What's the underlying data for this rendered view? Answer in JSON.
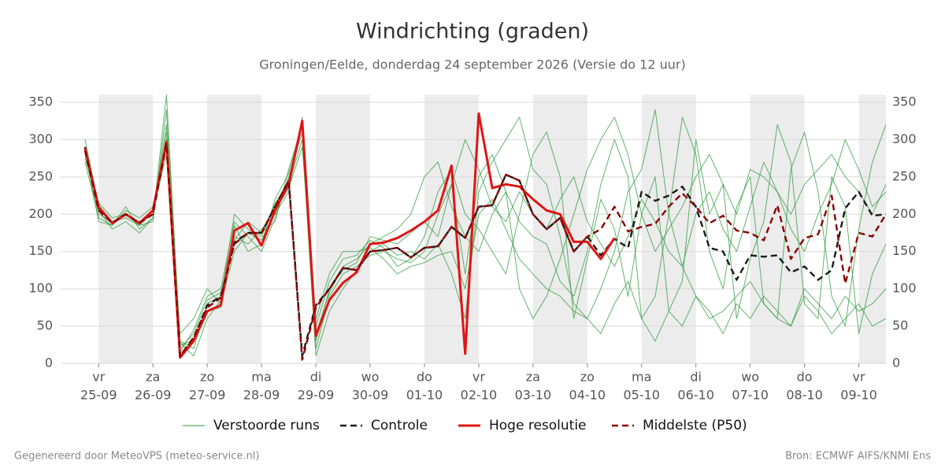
{
  "chart_data": {
    "type": "line",
    "title": "Windrichting (graden)",
    "subtitle": "Groningen/Eelde, donderdag 24 september 2026 (Versie do 12 uur)",
    "footer_left": "Gegenereerd door MeteoVPS (meteo-service.nl)",
    "footer_right": "Bron: ECMWF AIFS/KNMI Ens",
    "x": [
      -0.25,
      0,
      0.25,
      0.5,
      0.75,
      1,
      1.25,
      1.5,
      1.75,
      2,
      2.25,
      2.5,
      2.75,
      3,
      3.25,
      3.5,
      3.75,
      4,
      4.25,
      4.5,
      4.75,
      5,
      5.25,
      5.5,
      5.75,
      6,
      6.25,
      6.5,
      6.75,
      7,
      7.25,
      7.5,
      7.75,
      8,
      8.25,
      8.5,
      8.75,
      9,
      9.25,
      9.5,
      9.75,
      10,
      10.25,
      10.5,
      10.75,
      11,
      11.25,
      11.5,
      11.75,
      12,
      12.25,
      12.5,
      12.75,
      13,
      13.25,
      13.5,
      13.75,
      14,
      14.25,
      14.5
    ],
    "xlim": [
      -0.7,
      14.5
    ],
    "xticks": [
      {
        "value": 0,
        "label": "vr",
        "date": "25-09"
      },
      {
        "value": 1,
        "label": "za",
        "date": "26-09"
      },
      {
        "value": 2,
        "label": "zo",
        "date": "27-09"
      },
      {
        "value": 3,
        "label": "ma",
        "date": "28-09"
      },
      {
        "value": 4,
        "label": "di",
        "date": "29-09"
      },
      {
        "value": 5,
        "label": "wo",
        "date": "30-09"
      },
      {
        "value": 6,
        "label": "do",
        "date": "01-10"
      },
      {
        "value": 7,
        "label": "vr",
        "date": "02-10"
      },
      {
        "value": 8,
        "label": "za",
        "date": "03-10"
      },
      {
        "value": 9,
        "label": "zo",
        "date": "04-10"
      },
      {
        "value": 10,
        "label": "ma",
        "date": "05-10"
      },
      {
        "value": 11,
        "label": "di",
        "date": "06-10"
      },
      {
        "value": 12,
        "label": "wo",
        "date": "07-10"
      },
      {
        "value": 13,
        "label": "do",
        "date": "08-10"
      },
      {
        "value": 14,
        "label": "vr",
        "date": "09-10"
      }
    ],
    "ylim": [
      0,
      360
    ],
    "yticks": [
      0,
      50,
      100,
      150,
      200,
      250,
      300,
      350
    ],
    "grid": true,
    "series": [
      {
        "name": "Verstoorde runs",
        "color": "#2e9a3a",
        "runs": [
          [
            280,
            200,
            190,
            195,
            185,
            190,
            340,
            30,
            20,
            80,
            90,
            170,
            160,
            180,
            200,
            230,
            330,
            20,
            90,
            120,
            130,
            145,
            150,
            140,
            135,
            150,
            200,
            240,
            120,
            250,
            280,
            230,
            190,
            170,
            160,
            110,
            90,
            150,
            240,
            300,
            250,
            60,
            90,
            200,
            330,
            280,
            150,
            100,
            210,
            250,
            80,
            60,
            260,
            310,
            230,
            90,
            50,
            180,
            270,
            320
          ],
          [
            270,
            195,
            185,
            205,
            195,
            210,
            300,
            15,
            45,
            90,
            100,
            190,
            170,
            150,
            195,
            250,
            310,
            50,
            110,
            140,
            145,
            165,
            155,
            130,
            140,
            170,
            230,
            260,
            200,
            180,
            150,
            120,
            200,
            280,
            310,
            250,
            60,
            140,
            220,
            180,
            90,
            200,
            250,
            70,
            110,
            300,
            200,
            240,
            60,
            140,
            190,
            320,
            270,
            80,
            60,
            250,
            210,
            40,
            120,
            160
          ],
          [
            290,
            205,
            180,
            190,
            175,
            195,
            360,
            28,
            10,
            60,
            85,
            200,
            180,
            170,
            215,
            240,
            300,
            10,
            70,
            100,
            125,
            150,
            160,
            145,
            150,
            140,
            160,
            120,
            60,
            230,
            270,
            300,
            330,
            260,
            240,
            170,
            80,
            60,
            100,
            150,
            230,
            260,
            340,
            200,
            130,
            90,
            60,
            70,
            90,
            110,
            80,
            60,
            50,
            90,
            70,
            40,
            60,
            80,
            50,
            60
          ],
          [
            275,
            215,
            195,
            200,
            190,
            200,
            320,
            20,
            40,
            85,
            95,
            165,
            190,
            175,
            190,
            260,
            320,
            40,
            95,
            130,
            140,
            160,
            170,
            180,
            200,
            250,
            270,
            210,
            170,
            150,
            200,
            230,
            100,
            60,
            90,
            140,
            200,
            260,
            300,
            330,
            280,
            200,
            150,
            180,
            210,
            250,
            280,
            240,
            200,
            260,
            250,
            230,
            200,
            240,
            260,
            280,
            250,
            230,
            200,
            240
          ],
          [
            300,
            210,
            190,
            200,
            185,
            205,
            280,
            40,
            60,
            100,
            80,
            150,
            175,
            165,
            205,
            235,
            290,
            60,
            120,
            150,
            150,
            155,
            140,
            120,
            130,
            135,
            145,
            150,
            100,
            200,
            220,
            180,
            140,
            120,
            100,
            90,
            70,
            60,
            40,
            80,
            110,
            60,
            30,
            70,
            50,
            90,
            70,
            40,
            80,
            60,
            90,
            70,
            50,
            100,
            80,
            60,
            90,
            70,
            80,
            100
          ],
          [
            285,
            190,
            185,
            210,
            180,
            195,
            310,
            25,
            30,
            70,
            75,
            185,
            150,
            160,
            220,
            255,
            320,
            30,
            100,
            125,
            135,
            170,
            165,
            160,
            175,
            190,
            170,
            240,
            300,
            260,
            210,
            190,
            230,
            200,
            180,
            220,
            250,
            190,
            160,
            130,
            170,
            220,
            190,
            150,
            130,
            200,
            230,
            180,
            150,
            210,
            270,
            230,
            180,
            150,
            200,
            240,
            300,
            260,
            210,
            230
          ]
        ]
      },
      {
        "name": "Controle",
        "color": "#1a1a1a",
        "dashed": true,
        "values": [
          290,
          208,
          188,
          200,
          188,
          202,
          295,
          10,
          33,
          78,
          90,
          162,
          175,
          175,
          210,
          245,
          10,
          78,
          100,
          128,
          125,
          150,
          152,
          155,
          142,
          155,
          157,
          183,
          168,
          210,
          212,
          253,
          245,
          200,
          180,
          195,
          150,
          170,
          145,
          167,
          155,
          230,
          218,
          225,
          237,
          210,
          155,
          150,
          112,
          145,
          143,
          145,
          122,
          130,
          112,
          125,
          208,
          230,
          198,
          200
        ]
      },
      {
        "name": "Hoge resolutie",
        "color": "#e01515",
        "values": [
          288,
          210,
          188,
          200,
          188,
          205,
          297,
          8,
          30,
          70,
          78,
          178,
          188,
          158,
          205,
          240,
          325,
          37,
          85,
          108,
          122,
          160,
          162,
          168,
          178,
          190,
          205,
          265,
          13,
          335,
          235,
          240,
          237,
          220,
          205,
          200,
          163,
          163,
          140,
          168,
          null,
          null,
          null,
          null,
          null,
          null,
          null,
          null,
          null,
          null,
          null,
          null,
          null,
          null,
          null,
          null,
          null,
          null,
          null,
          null
        ]
      },
      {
        "name": "Middelste (P50)",
        "color": "#8b0000",
        "dashed": true,
        "values": [
          285,
          205,
          188,
          200,
          188,
          200,
          295,
          10,
          35,
          75,
          88,
          160,
          175,
          175,
          210,
          245,
          5,
          75,
          100,
          128,
          125,
          150,
          152,
          155,
          142,
          155,
          157,
          183,
          168,
          210,
          212,
          253,
          245,
          200,
          180,
          195,
          150,
          170,
          180,
          210,
          177,
          183,
          187,
          210,
          228,
          210,
          188,
          198,
          178,
          175,
          165,
          212,
          140,
          168,
          173,
          225,
          107,
          175,
          170,
          200
        ]
      }
    ]
  }
}
